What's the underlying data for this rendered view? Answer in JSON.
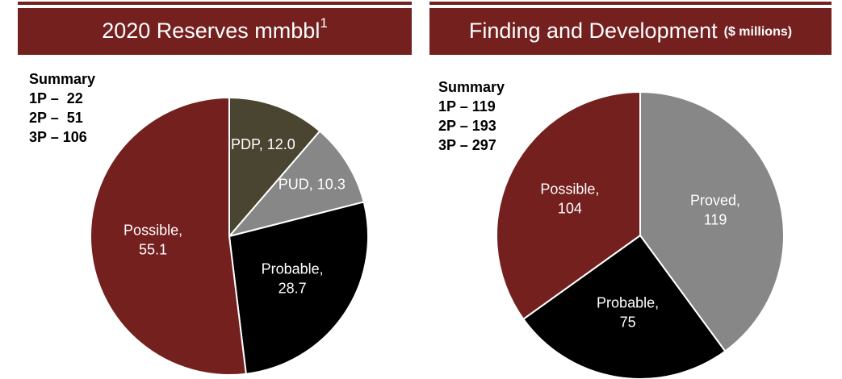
{
  "chart_data": [
    {
      "type": "pie",
      "title": "2020 Reserves mmbbl",
      "title_note": "1",
      "summary": {
        "heading": "Summary",
        "lines": [
          "1P –  22",
          "2P –  51",
          "3P – 106"
        ]
      },
      "categories": [
        "PDP,",
        "PUD,",
        "Probable,",
        "Possible,"
      ],
      "values": [
        12.0,
        10.3,
        28.7,
        55.1
      ],
      "value_labels": [
        "12.0",
        "10.3",
        "28.7",
        "55.1"
      ],
      "colors": [
        "#4a4530",
        "#878787",
        "#000000",
        "#74201f"
      ]
    },
    {
      "type": "pie",
      "title": "Finding and Development",
      "subtitle": "($ millions)",
      "summary": {
        "heading": "Summary",
        "lines": [
          "1P – 119",
          "2P – 193",
          "3P – 297"
        ]
      },
      "categories": [
        "Proved,",
        "Probable,",
        "Possible,"
      ],
      "values": [
        119,
        75,
        104
      ],
      "colors": [
        "#878787",
        "#000000",
        "#74201f"
      ]
    }
  ]
}
